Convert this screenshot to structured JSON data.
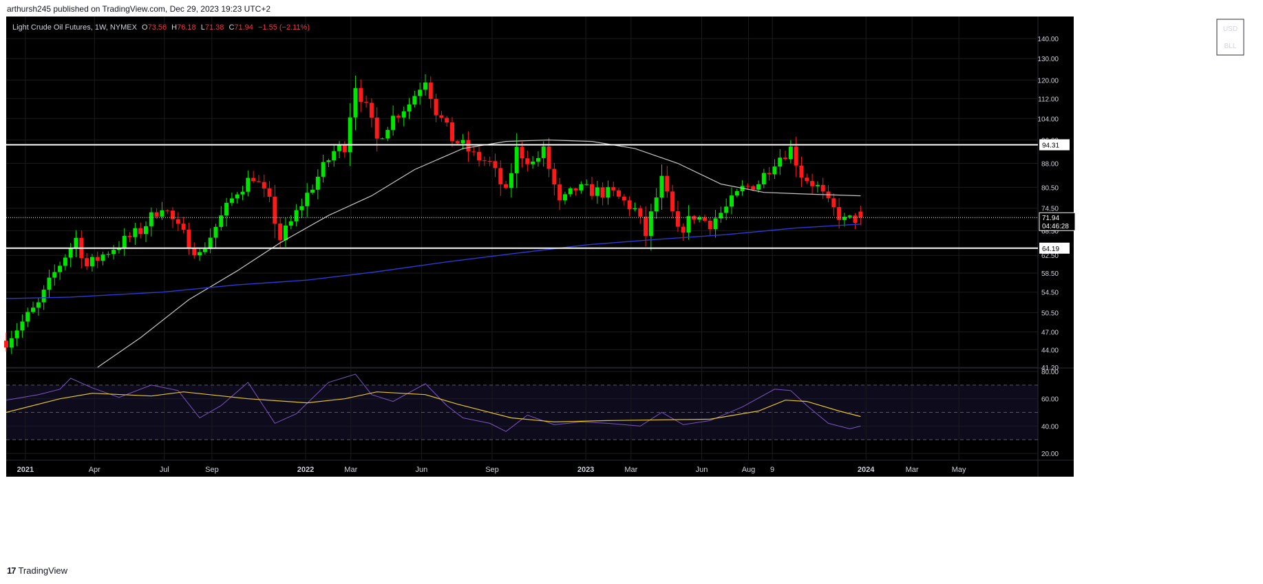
{
  "header": {
    "published": "arthursh245 published on TradingView.com, Dec 29, 2023 19:23 UTC+2"
  },
  "footer": {
    "logo": "17",
    "brand": "TradingView"
  },
  "legend": {
    "symbol": "Light Crude Oil Futures, 1W, NYMEX",
    "o_label": "O",
    "o_value": "73.56",
    "h_label": "H",
    "h_value": "76.18",
    "l_label": "L",
    "l_value": "71.38",
    "c_label": "C",
    "c_value": "71.94",
    "change": "−1.55 (−2.11%)"
  },
  "currency_buttons": [
    "USD",
    "BLL"
  ],
  "colors": {
    "background": "#000000",
    "up": "#00e600",
    "down": "#ff1a1a",
    "sma_fast": "#c8c8c8",
    "sma_slow": "#2b3bd6",
    "rsi": "#7e57c2",
    "rsi_ma": "#e8c62c",
    "grid": "#1c1c1c",
    "level_lines": "#ffffff"
  },
  "chart_data": [
    {
      "type": "candlestick",
      "title": "Light Crude Oil Futures, 1W, NYMEX",
      "y_axis": {
        "scale": "log",
        "ylim": [
          41.2,
          152
        ],
        "ticks": [
          "140.00",
          "130.00",
          "120.00",
          "112.00",
          "104.00",
          "96.00",
          "88.00",
          "80.50",
          "74.50",
          "68.50",
          "62.50",
          "58.50",
          "54.50",
          "50.50",
          "47.00",
          "44.00",
          "41.20"
        ]
      },
      "x_axis": {
        "ticks": [
          {
            "label": "2021",
            "date": "2021-01-01"
          },
          {
            "label": "Apr",
            "date": "2021-04-01"
          },
          {
            "label": "Jul",
            "date": "2021-07-01"
          },
          {
            "label": "Sep",
            "date": "2021-09-01"
          },
          {
            "label": "2022",
            "date": "2022-01-01"
          },
          {
            "label": "Mar",
            "date": "2022-03-01"
          },
          {
            "label": "Jun",
            "date": "2022-06-01"
          },
          {
            "label": "Sep",
            "date": "2022-09-01"
          },
          {
            "label": "2023",
            "date": "2023-01-01"
          },
          {
            "label": "Mar",
            "date": "2023-03-01"
          },
          {
            "label": "Jun",
            "date": "2023-06-01"
          },
          {
            "label": "Aug",
            "date": "2023-08-01"
          },
          {
            "label": "9",
            "date": "2023-09-01"
          },
          {
            "label": "2024",
            "date": "2024-01-01"
          },
          {
            "label": "Mar",
            "date": "2024-03-01"
          },
          {
            "label": "May",
            "date": "2024-05-01"
          }
        ],
        "start": "2020-12-07",
        "end": "2024-08-12",
        "grid": true
      },
      "levels": [
        {
          "value": 94.31,
          "label": "94.31"
        },
        {
          "value": 64.19,
          "label": "64.19"
        }
      ],
      "last_price": {
        "value": 71.94,
        "label": "71.94",
        "countdown": "04:46:28"
      },
      "series": [
        {
          "kind": "weekly_close_path",
          "path": [
            [
              "2020-12-07",
              45.5
            ],
            [
              "2021-01-18",
              52.0
            ],
            [
              "2021-02-08",
              58.5
            ],
            [
              "2021-03-08",
              66.5
            ],
            [
              "2021-03-22",
              60.0
            ],
            [
              "2021-04-19",
              63.5
            ],
            [
              "2021-05-31",
              68.5
            ],
            [
              "2021-06-28",
              75.5
            ],
            [
              "2021-07-19",
              69.0
            ],
            [
              "2021-08-16",
              62.5
            ],
            [
              "2021-09-06",
              69.5
            ],
            [
              "2021-10-04",
              79.5
            ],
            [
              "2021-10-25",
              84.0
            ],
            [
              "2021-11-15",
              76.0
            ],
            [
              "2021-11-29",
              66.5
            ],
            [
              "2021-12-13",
              70.5
            ],
            [
              "2022-01-10",
              81.0
            ],
            [
              "2022-02-07",
              92.0
            ],
            [
              "2022-02-21",
              94.0
            ],
            [
              "2022-03-07",
              118.0
            ],
            [
              "2022-03-21",
              108.0
            ],
            [
              "2022-04-04",
              96.0
            ],
            [
              "2022-04-25",
              104.5
            ],
            [
              "2022-05-16",
              110.0
            ],
            [
              "2022-06-06",
              121.0
            ],
            [
              "2022-06-20",
              107.0
            ],
            [
              "2022-07-11",
              96.5
            ],
            [
              "2022-07-25",
              94.0
            ],
            [
              "2022-08-08",
              90.5
            ],
            [
              "2022-08-29",
              88.0
            ],
            [
              "2022-09-19",
              78.5
            ],
            [
              "2022-10-03",
              92.5
            ],
            [
              "2022-10-24",
              88.0
            ],
            [
              "2022-11-07",
              92.0
            ],
            [
              "2022-11-28",
              75.5
            ],
            [
              "2022-12-19",
              80.0
            ],
            [
              "2023-01-09",
              79.5
            ],
            [
              "2023-02-06",
              78.5
            ],
            [
              "2023-03-06",
              74.0
            ],
            [
              "2023-03-20",
              67.5
            ],
            [
              "2023-04-10",
              82.5
            ],
            [
              "2023-05-01",
              68.0
            ],
            [
              "2023-05-22",
              72.5
            ],
            [
              "2023-06-12",
              70.5
            ],
            [
              "2023-07-03",
              74.5
            ],
            [
              "2023-07-24",
              80.0
            ],
            [
              "2023-08-14",
              82.0
            ],
            [
              "2023-09-04",
              89.0
            ],
            [
              "2023-09-25",
              93.0
            ],
            [
              "2023-10-09",
              84.5
            ],
            [
              "2023-10-30",
              80.5
            ],
            [
              "2023-11-13",
              75.5
            ],
            [
              "2023-12-04",
              71.0
            ],
            [
              "2023-12-25",
              71.94
            ]
          ]
        },
        {
          "name": "",
          "kind": "sma_fast",
          "points": [
            [
              "2021-04-05",
              41.2
            ],
            [
              "2021-05-31",
              46.0
            ],
            [
              "2021-08-02",
              53.0
            ],
            [
              "2021-10-04",
              59.0
            ],
            [
              "2021-11-29",
              65.5
            ],
            [
              "2022-01-31",
              72.5
            ],
            [
              "2022-03-28",
              78.0
            ],
            [
              "2022-05-23",
              86.0
            ],
            [
              "2022-07-25",
              93.0
            ],
            [
              "2022-09-19",
              95.5
            ],
            [
              "2022-11-14",
              96.0
            ],
            [
              "2023-01-09",
              95.5
            ],
            [
              "2023-03-06",
              93.0
            ],
            [
              "2023-05-01",
              88.0
            ],
            [
              "2023-06-26",
              81.5
            ],
            [
              "2023-08-21",
              79.0
            ],
            [
              "2023-10-16",
              78.5
            ],
            [
              "2023-12-25",
              78.0
            ]
          ]
        },
        {
          "name": "",
          "kind": "sma_slow",
          "points": [
            [
              "2020-12-07",
              53.2
            ],
            [
              "2021-03-01",
              53.5
            ],
            [
              "2021-06-28",
              54.5
            ],
            [
              "2021-10-04",
              56.0
            ],
            [
              "2022-01-03",
              57.0
            ],
            [
              "2022-04-04",
              58.8
            ],
            [
              "2022-07-04",
              61.0
            ],
            [
              "2022-10-03",
              63.0
            ],
            [
              "2023-01-02",
              65.0
            ],
            [
              "2023-04-03",
              66.3
            ],
            [
              "2023-07-03",
              67.5
            ],
            [
              "2023-10-02",
              69.2
            ],
            [
              "2023-12-25",
              70.2
            ]
          ]
        }
      ]
    },
    {
      "type": "line",
      "title": "",
      "ylim": [
        15,
        82
      ],
      "y_ticks": [
        "80.00",
        "60.00",
        "40.00",
        "20.00"
      ],
      "bands": [
        30,
        50,
        70
      ],
      "series": [
        {
          "name": "",
          "kind": "rsi",
          "points": [
            [
              "2020-12-07",
              59
            ],
            [
              "2021-01-18",
              63
            ],
            [
              "2021-02-15",
              67
            ],
            [
              "2021-03-01",
              75
            ],
            [
              "2021-03-29",
              68
            ],
            [
              "2021-05-03",
              61
            ],
            [
              "2021-06-14",
              70
            ],
            [
              "2021-07-19",
              66
            ],
            [
              "2021-08-16",
              46
            ],
            [
              "2021-09-13",
              55
            ],
            [
              "2021-10-18",
              72
            ],
            [
              "2021-11-22",
              42
            ],
            [
              "2021-12-20",
              49
            ],
            [
              "2022-01-31",
              72
            ],
            [
              "2022-03-07",
              78
            ],
            [
              "2022-03-28",
              63
            ],
            [
              "2022-04-25",
              58
            ],
            [
              "2022-06-06",
              71
            ],
            [
              "2022-07-04",
              55
            ],
            [
              "2022-07-25",
              46
            ],
            [
              "2022-08-29",
              42
            ],
            [
              "2022-09-19",
              36
            ],
            [
              "2022-10-17",
              48
            ],
            [
              "2022-11-21",
              41
            ],
            [
              "2022-12-26",
              43
            ],
            [
              "2023-01-30",
              42
            ],
            [
              "2023-03-13",
              40
            ],
            [
              "2023-04-10",
              50
            ],
            [
              "2023-05-08",
              41
            ],
            [
              "2023-06-12",
              44
            ],
            [
              "2023-07-24",
              54
            ],
            [
              "2023-09-04",
              67
            ],
            [
              "2023-09-25",
              66
            ],
            [
              "2023-10-16",
              55
            ],
            [
              "2023-11-13",
              42
            ],
            [
              "2023-12-11",
              38
            ],
            [
              "2023-12-25",
              40
            ]
          ]
        },
        {
          "name": "",
          "kind": "rsi_ma",
          "points": [
            [
              "2020-12-07",
              50
            ],
            [
              "2021-02-15",
              60
            ],
            [
              "2021-03-29",
              64
            ],
            [
              "2021-06-14",
              62
            ],
            [
              "2021-07-26",
              65
            ],
            [
              "2021-10-18",
              60
            ],
            [
              "2022-01-03",
              57
            ],
            [
              "2022-02-21",
              60
            ],
            [
              "2022-04-04",
              65
            ],
            [
              "2022-06-06",
              63
            ],
            [
              "2022-07-18",
              56
            ],
            [
              "2022-09-26",
              46
            ],
            [
              "2022-11-21",
              43
            ],
            [
              "2023-01-30",
              44
            ],
            [
              "2023-06-12",
              45
            ],
            [
              "2023-08-14",
              51
            ],
            [
              "2023-09-18",
              59
            ],
            [
              "2023-10-16",
              58
            ],
            [
              "2023-11-27",
              51
            ],
            [
              "2023-12-25",
              47
            ]
          ]
        }
      ]
    }
  ]
}
